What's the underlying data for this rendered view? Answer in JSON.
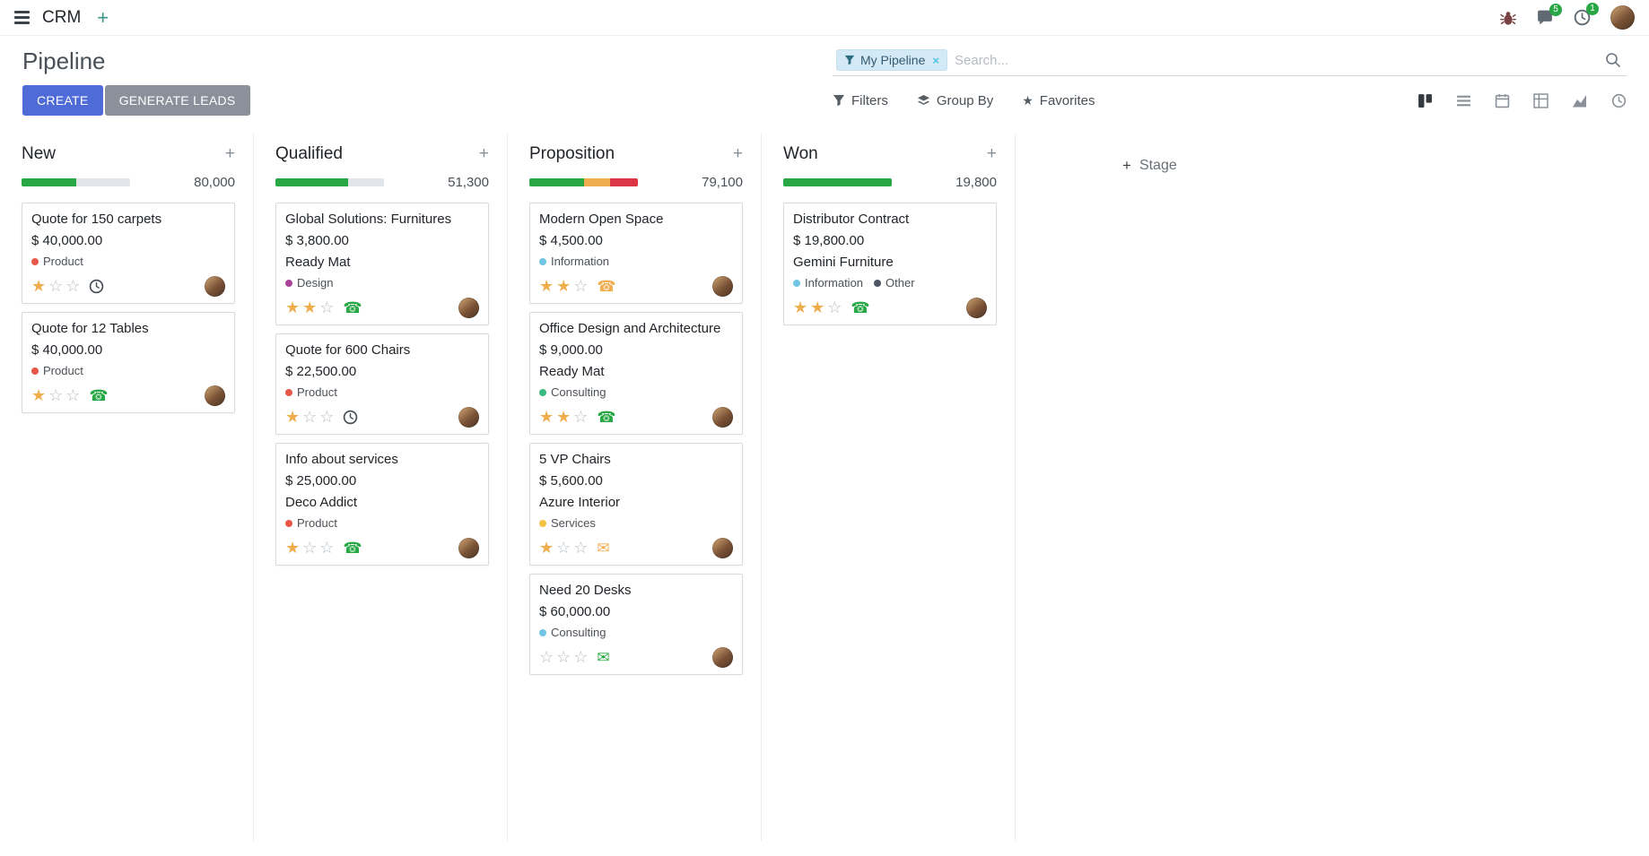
{
  "icons": {
    "plus": "+",
    "close": "×",
    "star_filled": "★",
    "star_empty": "☆",
    "phone": "☎",
    "envelope": "✉",
    "favorites_star": "★"
  },
  "navbar": {
    "app_name": "CRM",
    "messages_badge": "5",
    "activities_badge": "1"
  },
  "control_panel": {
    "title": "Pipeline",
    "create_label": "CREATE",
    "generate_leads_label": "GENERATE LEADS",
    "search_facet": "My Pipeline",
    "search_placeholder": "Search...",
    "filters_label": "Filters",
    "group_by_label": "Group By",
    "favorites_label": "Favorites",
    "add_stage_label": "Stage"
  },
  "colors": {
    "primary_button": "#4e6bd8",
    "secondary_button": "#8a919a",
    "progress_success": "#28a745",
    "progress_warning": "#f0ad4e",
    "progress_danger": "#dc3545",
    "star_filled": "#f0ad4e",
    "badge_green": "#28a745"
  },
  "columns": [
    {
      "name": "New",
      "total": "80,000",
      "progress": [
        {
          "color": "#28a745",
          "pct": 50
        }
      ],
      "cards": [
        {
          "title": "Quote for 150 carpets",
          "amount": "$ 40,000.00",
          "tags": [
            {
              "label": "Product",
              "color": "#e8584a"
            }
          ],
          "stars": 1,
          "activity": {
            "type": "clock",
            "color": "#495057"
          }
        },
        {
          "title": "Quote for 12 Tables",
          "amount": "$ 40,000.00",
          "tags": [
            {
              "label": "Product",
              "color": "#e8584a"
            }
          ],
          "stars": 1,
          "activity": {
            "type": "phone",
            "color": "#28a745"
          }
        }
      ]
    },
    {
      "name": "Qualified",
      "total": "51,300",
      "progress": [
        {
          "color": "#28a745",
          "pct": 67
        }
      ],
      "cards": [
        {
          "title": "Global Solutions: Furnitures",
          "amount": "$ 3,800.00",
          "partner": "Ready Mat",
          "tags": [
            {
              "label": "Design",
              "color": "#a8439a"
            }
          ],
          "stars": 2,
          "activity": {
            "type": "phone",
            "color": "#28a745"
          }
        },
        {
          "title": "Quote for 600 Chairs",
          "amount": "$ 22,500.00",
          "tags": [
            {
              "label": "Product",
              "color": "#e8584a"
            }
          ],
          "stars": 1,
          "activity": {
            "type": "clock",
            "color": "#495057"
          }
        },
        {
          "title": "Info about services",
          "amount": "$ 25,000.00",
          "partner": "Deco Addict",
          "tags": [
            {
              "label": "Product",
              "color": "#e8584a"
            }
          ],
          "stars": 1,
          "activity": {
            "type": "phone",
            "color": "#28a745"
          }
        }
      ]
    },
    {
      "name": "Proposition",
      "total": "79,100",
      "progress": [
        {
          "color": "#28a745",
          "pct": 50
        },
        {
          "color": "#f0ad4e",
          "pct": 24
        },
        {
          "color": "#dc3545",
          "pct": 26
        }
      ],
      "cards": [
        {
          "title": "Modern Open Space",
          "amount": "$ 4,500.00",
          "tags": [
            {
              "label": "Information",
              "color": "#6fc6e5"
            }
          ],
          "stars": 2,
          "activity": {
            "type": "phone",
            "color": "#f0ad4e"
          }
        },
        {
          "title": "Office Design and Architecture",
          "amount": "$ 9,000.00",
          "partner": "Ready Mat",
          "tags": [
            {
              "label": "Consulting",
              "color": "#39b97f"
            }
          ],
          "stars": 2,
          "activity": {
            "type": "phone",
            "color": "#28a745"
          }
        },
        {
          "title": "5 VP Chairs",
          "amount": "$ 5,600.00",
          "partner": "Azure Interior",
          "tags": [
            {
              "label": "Services",
              "color": "#f2c340"
            }
          ],
          "stars": 1,
          "activity": {
            "type": "envelope",
            "color": "#f0ad4e"
          }
        },
        {
          "title": "Need 20 Desks",
          "amount": "$ 60,000.00",
          "tags": [
            {
              "label": "Consulting",
              "color": "#6fc6e5"
            }
          ],
          "stars": 0,
          "activity": {
            "type": "envelope",
            "color": "#28a745"
          }
        }
      ]
    },
    {
      "name": "Won",
      "total": "19,800",
      "progress": [
        {
          "color": "#28a745",
          "pct": 100
        }
      ],
      "cards": [
        {
          "title": "Distributor Contract",
          "amount": "$ 19,800.00",
          "partner": "Gemini Furniture",
          "tags": [
            {
              "label": "Information",
              "color": "#6fc6e5"
            },
            {
              "label": "Other",
              "color": "#4b5563"
            }
          ],
          "stars": 2,
          "activity": {
            "type": "phone",
            "color": "#28a745"
          }
        }
      ]
    }
  ]
}
